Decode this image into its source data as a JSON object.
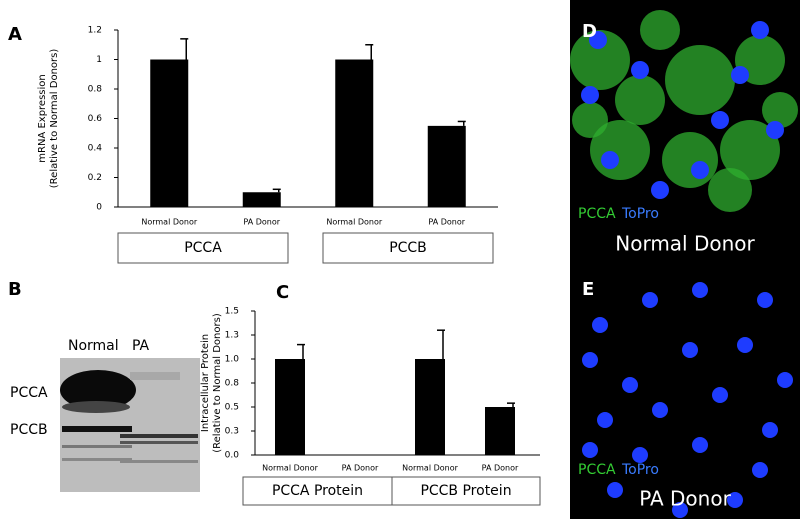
{
  "chart_data": [
    {
      "type": "bar",
      "panel_label": "A",
      "ylabel": [
        "mRNA Expression",
        "(Relative to Normal Donors)"
      ],
      "categories": [
        "Normal Donor",
        "PA Donor",
        "Normal Donor",
        "PA Donor"
      ],
      "groups": [
        "PCCA",
        "PCCB"
      ],
      "values": [
        1,
        0.1,
        1,
        0.55
      ],
      "errors": [
        0.14,
        0.02,
        0.1,
        0.03
      ],
      "color": "#000000",
      "ylim": [
        0,
        1.2
      ],
      "yticks": [
        0,
        0.2,
        0.4,
        0.6,
        0.8,
        1,
        1.2
      ]
    },
    {
      "type": "bar",
      "panel_label": "C",
      "ylabel": [
        "Intracellular Protein",
        "(Relative to Normal Donors)"
      ],
      "categories": [
        "Normal Donor",
        "PA Donor",
        "Normal Donor",
        "PA Donor"
      ],
      "groups": [
        "PCCA Protein",
        "PCCB Protein"
      ],
      "values": [
        1,
        0,
        1,
        0.5
      ],
      "errors": [
        0.15,
        null,
        0.3,
        0.04
      ],
      "color": "#000000",
      "ylim": [
        0,
        1.5
      ],
      "yticks": [
        {
          "value": 0,
          "label": "0.0"
        },
        {
          "value": 0.25,
          "label": "0.3"
        },
        {
          "value": 0.5,
          "label": "0.5"
        },
        {
          "value": 0.75,
          "label": "0.8"
        },
        {
          "value": 1,
          "label": "1.0"
        },
        {
          "value": 1.25,
          "label": "1.3"
        },
        {
          "value": 1.5,
          "label": "1.5"
        }
      ]
    }
  ],
  "blot": {
    "panel_label": "B",
    "lanes": [
      "Normal",
      "PA"
    ],
    "bands": [
      "PCCA",
      "PCCB"
    ]
  },
  "images": [
    {
      "panel_label": "D",
      "stains": [
        "PCCA",
        "ToPro"
      ],
      "caption": "Normal Donor"
    },
    {
      "panel_label": "E",
      "stains": [
        "PCCA",
        "ToPro"
      ],
      "caption": "PA Donor"
    }
  ]
}
